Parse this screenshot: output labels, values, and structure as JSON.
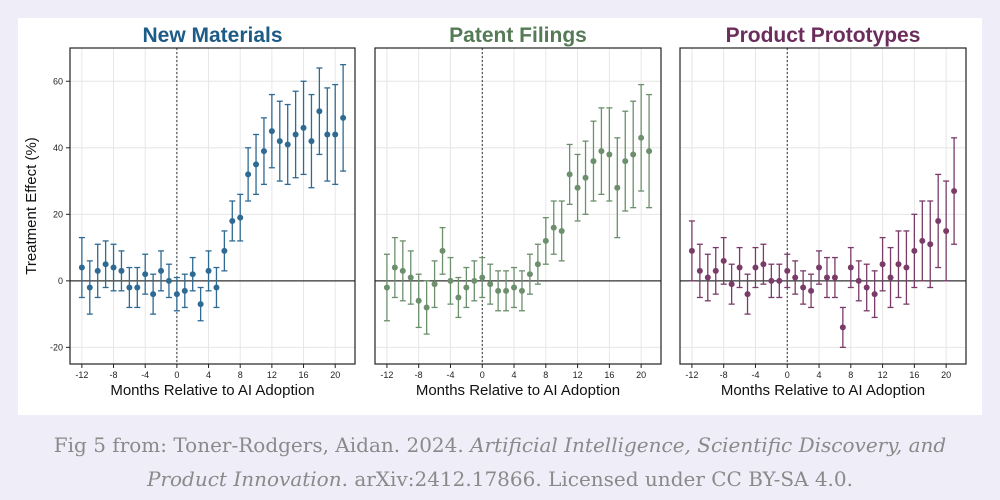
{
  "chart_data": [
    {
      "type": "scatter",
      "title": "New Materials",
      "title_color": "#1d5c86",
      "color": "#2f6a93",
      "xlabel": "Months Relative to AI Adoption",
      "ylabel": "Treatment Effect (%)",
      "xlim": [
        -13.5,
        22.5
      ],
      "ylim": [
        -25,
        70
      ],
      "xticks": [
        -12,
        -8,
        -4,
        0,
        4,
        8,
        12,
        16,
        20
      ],
      "yticks": [
        -20,
        0,
        20,
        40,
        60
      ],
      "grid": true,
      "reference_lines": {
        "x": 0,
        "y": 0
      },
      "series": [
        {
          "x": [
            -12,
            -11,
            -10,
            -9,
            -8,
            -7,
            -6,
            -5,
            -4,
            -3,
            -2,
            -1,
            0,
            1,
            2,
            3,
            4,
            5,
            6,
            7,
            8,
            9,
            10,
            11,
            12,
            13,
            14,
            15,
            16,
            17,
            18,
            19,
            20,
            21
          ],
          "y": [
            4,
            -2,
            3,
            5,
            4,
            3,
            -2,
            -2,
            2,
            -4,
            3,
            0,
            -4,
            -3,
            2,
            -7,
            3,
            -2,
            9,
            18,
            19,
            32,
            35,
            39,
            45,
            42,
            41,
            44,
            46,
            42,
            51,
            44,
            44,
            49
          ],
          "err": [
            9,
            8,
            8,
            7,
            7,
            6,
            6,
            6,
            6,
            6,
            6,
            5,
            5,
            5,
            5,
            5,
            6,
            6,
            6,
            6,
            7,
            8,
            9,
            10,
            11,
            12,
            12,
            13,
            14,
            14,
            13,
            14,
            15,
            16
          ]
        }
      ]
    },
    {
      "type": "scatter",
      "title": "Patent Filings",
      "title_color": "#557a55",
      "color": "#6c8f6c",
      "xlabel": "Months Relative to AI Adoption",
      "ylabel": "",
      "xlim": [
        -13.5,
        22.5
      ],
      "ylim": [
        -25,
        70
      ],
      "xticks": [
        -12,
        -8,
        -4,
        0,
        4,
        8,
        12,
        16,
        20
      ],
      "yticks": [],
      "grid": true,
      "reference_lines": {
        "x": 0,
        "y": 0
      },
      "series": [
        {
          "x": [
            -12,
            -11,
            -10,
            -9,
            -8,
            -7,
            -6,
            -5,
            -4,
            -3,
            -2,
            -1,
            0,
            1,
            2,
            3,
            4,
            5,
            6,
            7,
            8,
            9,
            10,
            11,
            12,
            13,
            14,
            15,
            16,
            17,
            18,
            19,
            20,
            21
          ],
          "y": [
            -2,
            4,
            3,
            1,
            -6,
            -8,
            -1,
            9,
            0,
            -5,
            -2,
            0,
            1,
            -1,
            -3,
            -3,
            -2,
            -3,
            2,
            5,
            12,
            16,
            15,
            32,
            28,
            31,
            36,
            39,
            38,
            28,
            36,
            38,
            43,
            39
          ],
          "err": [
            10,
            9,
            9,
            8,
            8,
            8,
            7,
            7,
            7,
            6,
            6,
            6,
            6,
            6,
            6,
            6,
            6,
            6,
            6,
            6,
            7,
            8,
            9,
            9,
            10,
            11,
            12,
            13,
            14,
            15,
            15,
            16,
            16,
            17
          ]
        }
      ]
    },
    {
      "type": "scatter",
      "title": "Product Prototypes",
      "title_color": "#6b2d5c",
      "color": "#7a3b69",
      "xlabel": "Months Relative to AI Adoption",
      "ylabel": "",
      "xlim": [
        -13.5,
        22.5
      ],
      "ylim": [
        -25,
        70
      ],
      "xticks": [
        -12,
        -8,
        -4,
        0,
        4,
        8,
        12,
        16,
        20
      ],
      "yticks": [],
      "grid": true,
      "reference_lines": {
        "x": 0,
        "y": 0
      },
      "series": [
        {
          "x": [
            -12,
            -11,
            -10,
            -9,
            -8,
            -7,
            -6,
            -5,
            -4,
            -3,
            -2,
            -1,
            0,
            1,
            2,
            3,
            4,
            5,
            6,
            7,
            8,
            9,
            10,
            11,
            12,
            13,
            14,
            15,
            16,
            17,
            18,
            19,
            20,
            21
          ],
          "y": [
            9,
            3,
            1,
            3,
            6,
            -1,
            4,
            -4,
            4,
            5,
            0,
            0,
            3,
            1,
            -2,
            -3,
            4,
            1,
            1,
            -14,
            4,
            0,
            -2,
            -4,
            5,
            1,
            5,
            4,
            9,
            12,
            11,
            18,
            15,
            27
          ],
          "err": [
            9,
            8,
            7,
            7,
            7,
            6,
            6,
            6,
            6,
            6,
            5,
            5,
            5,
            5,
            5,
            5,
            5,
            6,
            6,
            6,
            6,
            6,
            7,
            7,
            8,
            9,
            10,
            11,
            11,
            12,
            13,
            14,
            15,
            16
          ]
        }
      ]
    }
  ],
  "caption": {
    "prefix": "Fig 5 from: Toner-Rodgers, Aidan. 2024. ",
    "title_italic_1": "Artificial Intelligence, Scientific Discovery, and",
    "title_italic_2": "Product Innovation",
    "suffix": ". arXiv:2412.17866. Licensed under CC BY-SA 4.0."
  }
}
